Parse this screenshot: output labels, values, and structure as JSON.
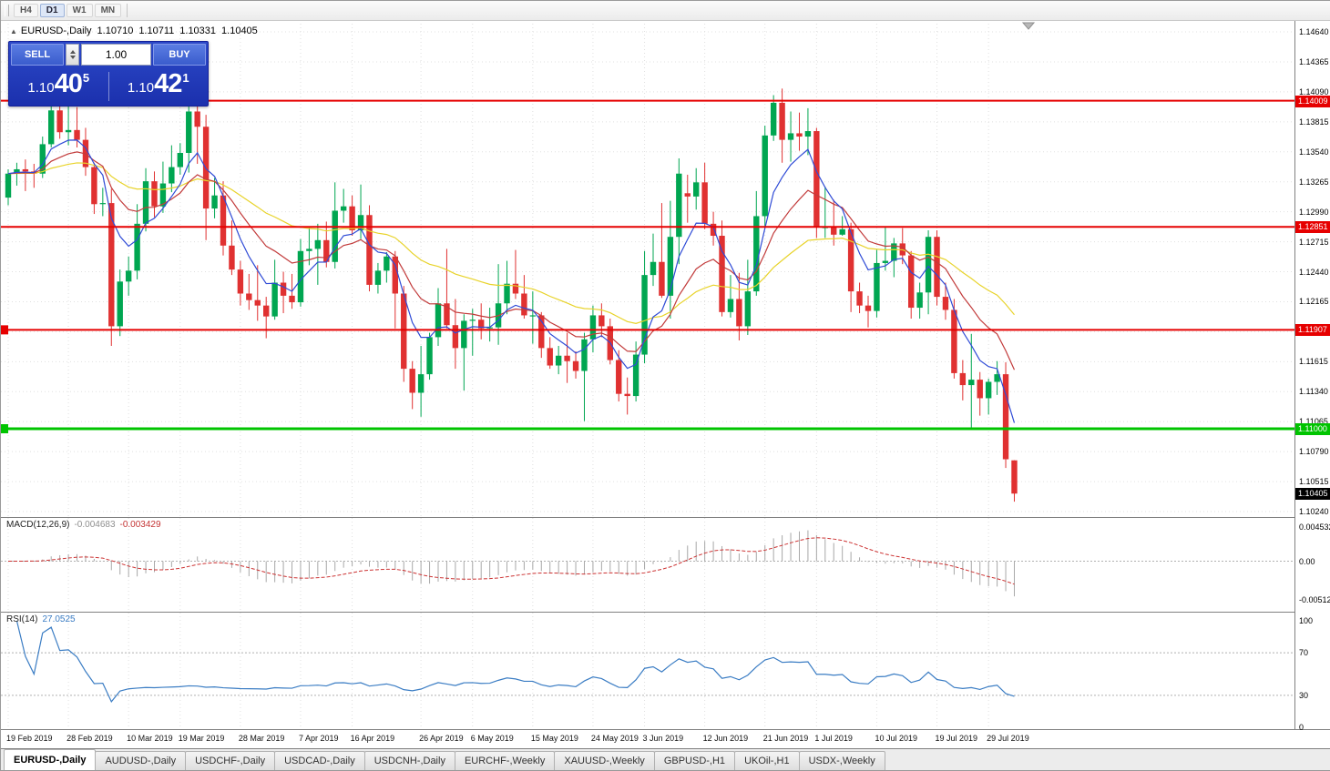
{
  "toolbar": {
    "timeframes": [
      {
        "label": "H4",
        "active": false
      },
      {
        "label": "D1",
        "active": true
      },
      {
        "label": "W1",
        "active": false
      },
      {
        "label": "MN",
        "active": false
      }
    ]
  },
  "chart_header": {
    "collapse_icon": "▲",
    "symbol": "EURUSD-,Daily",
    "open": "1.10710",
    "high": "1.10711",
    "low": "1.10331",
    "close": "1.10405"
  },
  "trade_panel": {
    "sell_label": "SELL",
    "buy_label": "BUY",
    "volume": "1.00",
    "bid": {
      "prefix": "1.10",
      "big": "40",
      "sup": "5"
    },
    "ask": {
      "prefix": "1.10",
      "big": "42",
      "sup": "1"
    }
  },
  "price_scale": {
    "ticks": [
      "1.14640",
      "1.14365",
      "1.14090",
      "1.13815",
      "1.13540",
      "1.13265",
      "1.12990",
      "1.12715",
      "1.12440",
      "1.12165",
      "1.11890",
      "1.11615",
      "1.11340",
      "1.11065",
      "1.10790",
      "1.10515",
      "1.10240"
    ]
  },
  "levels": [
    {
      "price": 1.14009,
      "label": "1.14009",
      "color": "#e60000",
      "width": 2,
      "left_marker": false
    },
    {
      "price": 1.12851,
      "label": "1.12851",
      "color": "#e60000",
      "width": 2,
      "left_marker": false
    },
    {
      "price": 1.11907,
      "label": "1.11907",
      "color": "#e60000",
      "width": 2,
      "left_marker": true
    },
    {
      "price": 1.11,
      "label": "1.11000",
      "color": "#00c400",
      "width": 3,
      "left_marker": true
    }
  ],
  "current_price": {
    "value": 1.10405,
    "label": "1.10405",
    "box_color": "#000000"
  },
  "indicators": {
    "macd": {
      "name": "MACD(12,26,9)",
      "value_main": "-0.004683",
      "value_signal": "-0.003429",
      "scale": [
        "0.004532",
        "0.00",
        "-0.005122"
      ]
    },
    "rsi": {
      "name": "RSI(14)",
      "value": "27.0525",
      "scale": [
        "100",
        "70",
        "30",
        "0"
      ],
      "levels": [
        70,
        30
      ]
    }
  },
  "tabs": [
    {
      "label": "EURUSD-,Daily",
      "active": true
    },
    {
      "label": "AUDUSD-,Daily",
      "active": false
    },
    {
      "label": "USDCHF-,Daily",
      "active": false
    },
    {
      "label": "USDCAD-,Daily",
      "active": false
    },
    {
      "label": "USDCNH-,Daily",
      "active": false
    },
    {
      "label": "EURCHF-,Weekly",
      "active": false
    },
    {
      "label": "XAUUSD-,Weekly",
      "active": false
    },
    {
      "label": "GBPUSD-,H1",
      "active": false
    },
    {
      "label": "UKOil-,H1",
      "active": false
    },
    {
      "label": "USDX-,Weekly",
      "active": false
    }
  ],
  "colors": {
    "bull": "#00a651",
    "bear": "#e03131",
    "ma_fast": "#2f4bd6",
    "ma_mid": "#c23b3b",
    "ma_slow": "#e8d32a",
    "macd_hist": "#a8a8a8",
    "macd_signal": "#cc3333",
    "rsi_line": "#3b7dc4",
    "grid": "#e0e0e0",
    "level_red": "#e60000",
    "level_green": "#00c400"
  },
  "chart_data": {
    "type": "candlestick",
    "title": "EURUSD-,Daily",
    "ylim": [
      1.1019,
      1.1475
    ],
    "x_ticks": [
      {
        "i": 0,
        "label": "19 Feb 2019"
      },
      {
        "i": 7,
        "label": "28 Feb 2019"
      },
      {
        "i": 14,
        "label": "10 Mar 2019"
      },
      {
        "i": 20,
        "label": "19 Mar 2019"
      },
      {
        "i": 27,
        "label": "28 Mar 2019"
      },
      {
        "i": 34,
        "label": "7 Apr 2019"
      },
      {
        "i": 40,
        "label": "16 Apr 2019"
      },
      {
        "i": 48,
        "label": "26 Apr 2019"
      },
      {
        "i": 54,
        "label": "6 May 2019"
      },
      {
        "i": 61,
        "label": "15 May 2019"
      },
      {
        "i": 68,
        "label": "24 May 2019"
      },
      {
        "i": 74,
        "label": "3 Jun 2019"
      },
      {
        "i": 81,
        "label": "12 Jun 2019"
      },
      {
        "i": 88,
        "label": "21 Jun 2019"
      },
      {
        "i": 94,
        "label": "1 Jul 2019"
      },
      {
        "i": 101,
        "label": "10 Jul 2019"
      },
      {
        "i": 108,
        "label": "19 Jul 2019"
      },
      {
        "i": 114,
        "label": "29 Jul 2019"
      }
    ],
    "ohlc": [
      [
        1.1312,
        1.1338,
        1.1305,
        1.1334
      ],
      [
        1.1334,
        1.1344,
        1.1323,
        1.1338
      ],
      [
        1.1338,
        1.1347,
        1.1318,
        1.1336
      ],
      [
        1.1336,
        1.1343,
        1.1321,
        1.1334
      ],
      [
        1.1334,
        1.1368,
        1.133,
        1.1361
      ],
      [
        1.1361,
        1.1403,
        1.1358,
        1.1392
      ],
      [
        1.1392,
        1.1404,
        1.1366,
        1.1372
      ],
      [
        1.1372,
        1.1402,
        1.136,
        1.1374
      ],
      [
        1.1374,
        1.1395,
        1.1358,
        1.1365
      ],
      [
        1.1365,
        1.1376,
        1.1332,
        1.134
      ],
      [
        1.134,
        1.1344,
        1.1297,
        1.1306
      ],
      [
        1.1306,
        1.1321,
        1.1295,
        1.1307
      ],
      [
        1.1307,
        1.132,
        1.1176,
        1.1194
      ],
      [
        1.1194,
        1.1246,
        1.1185,
        1.1235
      ],
      [
        1.1235,
        1.1258,
        1.1222,
        1.1245
      ],
      [
        1.1245,
        1.1306,
        1.1237,
        1.1288
      ],
      [
        1.1288,
        1.1339,
        1.1281,
        1.1327
      ],
      [
        1.1327,
        1.1336,
        1.1294,
        1.1304
      ],
      [
        1.1304,
        1.1345,
        1.1298,
        1.1325
      ],
      [
        1.1325,
        1.136,
        1.1317,
        1.134
      ],
      [
        1.134,
        1.1362,
        1.1333,
        1.1353
      ],
      [
        1.1353,
        1.14,
        1.1335,
        1.1391
      ],
      [
        1.1391,
        1.1397,
        1.1343,
        1.1377
      ],
      [
        1.1377,
        1.1388,
        1.1273,
        1.1302
      ],
      [
        1.1302,
        1.133,
        1.1293,
        1.1314
      ],
      [
        1.1314,
        1.1327,
        1.1259,
        1.1268
      ],
      [
        1.1268,
        1.1291,
        1.1241,
        1.1246
      ],
      [
        1.1246,
        1.1254,
        1.1213,
        1.1224
      ],
      [
        1.1224,
        1.1242,
        1.1209,
        1.1218
      ],
      [
        1.1218,
        1.125,
        1.1199,
        1.1213
      ],
      [
        1.1213,
        1.1221,
        1.1183,
        1.1203
      ],
      [
        1.1203,
        1.1255,
        1.12,
        1.1234
      ],
      [
        1.1234,
        1.1244,
        1.1206,
        1.1222
      ],
      [
        1.1222,
        1.1242,
        1.121,
        1.1216
      ],
      [
        1.1216,
        1.1274,
        1.1212,
        1.1263
      ],
      [
        1.1263,
        1.1285,
        1.125,
        1.1265
      ],
      [
        1.1265,
        1.1288,
        1.1232,
        1.1273
      ],
      [
        1.1273,
        1.129,
        1.1248,
        1.1253
      ],
      [
        1.1253,
        1.1326,
        1.1247,
        1.13
      ],
      [
        1.13,
        1.132,
        1.1289,
        1.1304
      ],
      [
        1.1304,
        1.1314,
        1.1277,
        1.1282
      ],
      [
        1.1282,
        1.1324,
        1.1274,
        1.1296
      ],
      [
        1.1296,
        1.1305,
        1.1226,
        1.1232
      ],
      [
        1.1232,
        1.1252,
        1.1224,
        1.1245
      ],
      [
        1.1245,
        1.1262,
        1.1234,
        1.1258
      ],
      [
        1.1258,
        1.1263,
        1.1192,
        1.1224
      ],
      [
        1.1224,
        1.1231,
        1.1143,
        1.1155
      ],
      [
        1.1155,
        1.1162,
        1.1118,
        1.1133
      ],
      [
        1.1133,
        1.1176,
        1.1111,
        1.115
      ],
      [
        1.115,
        1.1188,
        1.1145,
        1.1184
      ],
      [
        1.1184,
        1.1229,
        1.1176,
        1.1215
      ],
      [
        1.1215,
        1.1265,
        1.1192,
        1.1195
      ],
      [
        1.1195,
        1.1219,
        1.1155,
        1.1174
      ],
      [
        1.1174,
        1.1205,
        1.1135,
        1.1199
      ],
      [
        1.1199,
        1.121,
        1.1167,
        1.12
      ],
      [
        1.12,
        1.1215,
        1.1182,
        1.1192
      ],
      [
        1.1192,
        1.1211,
        1.118,
        1.1193
      ],
      [
        1.1193,
        1.1251,
        1.1177,
        1.1215
      ],
      [
        1.1215,
        1.1254,
        1.1205,
        1.1233
      ],
      [
        1.1233,
        1.1264,
        1.1219,
        1.1224
      ],
      [
        1.1224,
        1.1241,
        1.1201,
        1.1204
      ],
      [
        1.1204,
        1.1226,
        1.1178,
        1.1204
      ],
      [
        1.1204,
        1.1207,
        1.1165,
        1.1174
      ],
      [
        1.1174,
        1.1184,
        1.1155,
        1.1158
      ],
      [
        1.1158,
        1.1176,
        1.115,
        1.1167
      ],
      [
        1.1167,
        1.1188,
        1.1142,
        1.1162
      ],
      [
        1.1162,
        1.1171,
        1.1146,
        1.1153
      ],
      [
        1.1153,
        1.1188,
        1.1107,
        1.1182
      ],
      [
        1.1182,
        1.1213,
        1.117,
        1.1204
      ],
      [
        1.1204,
        1.1215,
        1.1184,
        1.1194
      ],
      [
        1.1194,
        1.1201,
        1.1159,
        1.1163
      ],
      [
        1.1163,
        1.1172,
        1.1125,
        1.1132
      ],
      [
        1.1132,
        1.1147,
        1.1113,
        1.113
      ],
      [
        1.113,
        1.118,
        1.1125,
        1.1168
      ],
      [
        1.1168,
        1.1263,
        1.116,
        1.1241
      ],
      [
        1.1241,
        1.1279,
        1.1231,
        1.1253
      ],
      [
        1.1253,
        1.1307,
        1.122,
        1.1222
      ],
      [
        1.1222,
        1.1309,
        1.1201,
        1.1276
      ],
      [
        1.1276,
        1.1348,
        1.1251,
        1.1334
      ],
      [
        1.1316,
        1.1333,
        1.1289,
        1.1313
      ],
      [
        1.1313,
        1.1339,
        1.1301,
        1.1326
      ],
      [
        1.1326,
        1.1344,
        1.1283,
        1.1288
      ],
      [
        1.1288,
        1.1299,
        1.1268,
        1.1277
      ],
      [
        1.1277,
        1.1291,
        1.1203,
        1.1207
      ],
      [
        1.1207,
        1.1241,
        1.1202,
        1.1219
      ],
      [
        1.1219,
        1.1243,
        1.1181,
        1.1194
      ],
      [
        1.1194,
        1.1255,
        1.1186,
        1.1226
      ],
      [
        1.1226,
        1.1318,
        1.1222,
        1.1295
      ],
      [
        1.1295,
        1.1378,
        1.1285,
        1.1369
      ],
      [
        1.1369,
        1.1406,
        1.1364,
        1.1399
      ],
      [
        1.1399,
        1.1412,
        1.1344,
        1.1365
      ],
      [
        1.1365,
        1.1391,
        1.1345,
        1.1371
      ],
      [
        1.1371,
        1.139,
        1.1355,
        1.1368
      ],
      [
        1.1368,
        1.1394,
        1.1351,
        1.1373
      ],
      [
        1.1373,
        1.1376,
        1.1275,
        1.1285
      ],
      [
        1.1285,
        1.1322,
        1.1275,
        1.1285
      ],
      [
        1.1285,
        1.131,
        1.1268,
        1.1278
      ],
      [
        1.1278,
        1.1295,
        1.1277,
        1.1283
      ],
      [
        1.1283,
        1.1289,
        1.1207,
        1.1226
      ],
      [
        1.1226,
        1.1234,
        1.1206,
        1.1213
      ],
      [
        1.1213,
        1.1222,
        1.1193,
        1.1208
      ],
      [
        1.1208,
        1.1264,
        1.1202,
        1.1252
      ],
      [
        1.1252,
        1.1285,
        1.1245,
        1.1254
      ],
      [
        1.1254,
        1.1275,
        1.1239,
        1.127
      ],
      [
        1.127,
        1.1284,
        1.1251,
        1.1259
      ],
      [
        1.1259,
        1.1263,
        1.1201,
        1.1211
      ],
      [
        1.1211,
        1.1234,
        1.1201,
        1.1225
      ],
      [
        1.1225,
        1.1282,
        1.1205,
        1.1276
      ],
      [
        1.1276,
        1.1282,
        1.1213,
        1.1221
      ],
      [
        1.1221,
        1.1234,
        1.12,
        1.1209
      ],
      [
        1.1209,
        1.1219,
        1.1146,
        1.1151
      ],
      [
        1.1151,
        1.1163,
        1.1126,
        1.114
      ],
      [
        1.114,
        1.1187,
        1.1101,
        1.1145
      ],
      [
        1.1145,
        1.1152,
        1.1112,
        1.1128
      ],
      [
        1.1128,
        1.1146,
        1.1113,
        1.1143
      ],
      [
        1.1143,
        1.1162,
        1.1131,
        1.115
      ],
      [
        1.115,
        1.1161,
        1.1064,
        1.1072
      ],
      [
        1.1071,
        1.10711,
        1.10331,
        1.10405
      ]
    ]
  }
}
